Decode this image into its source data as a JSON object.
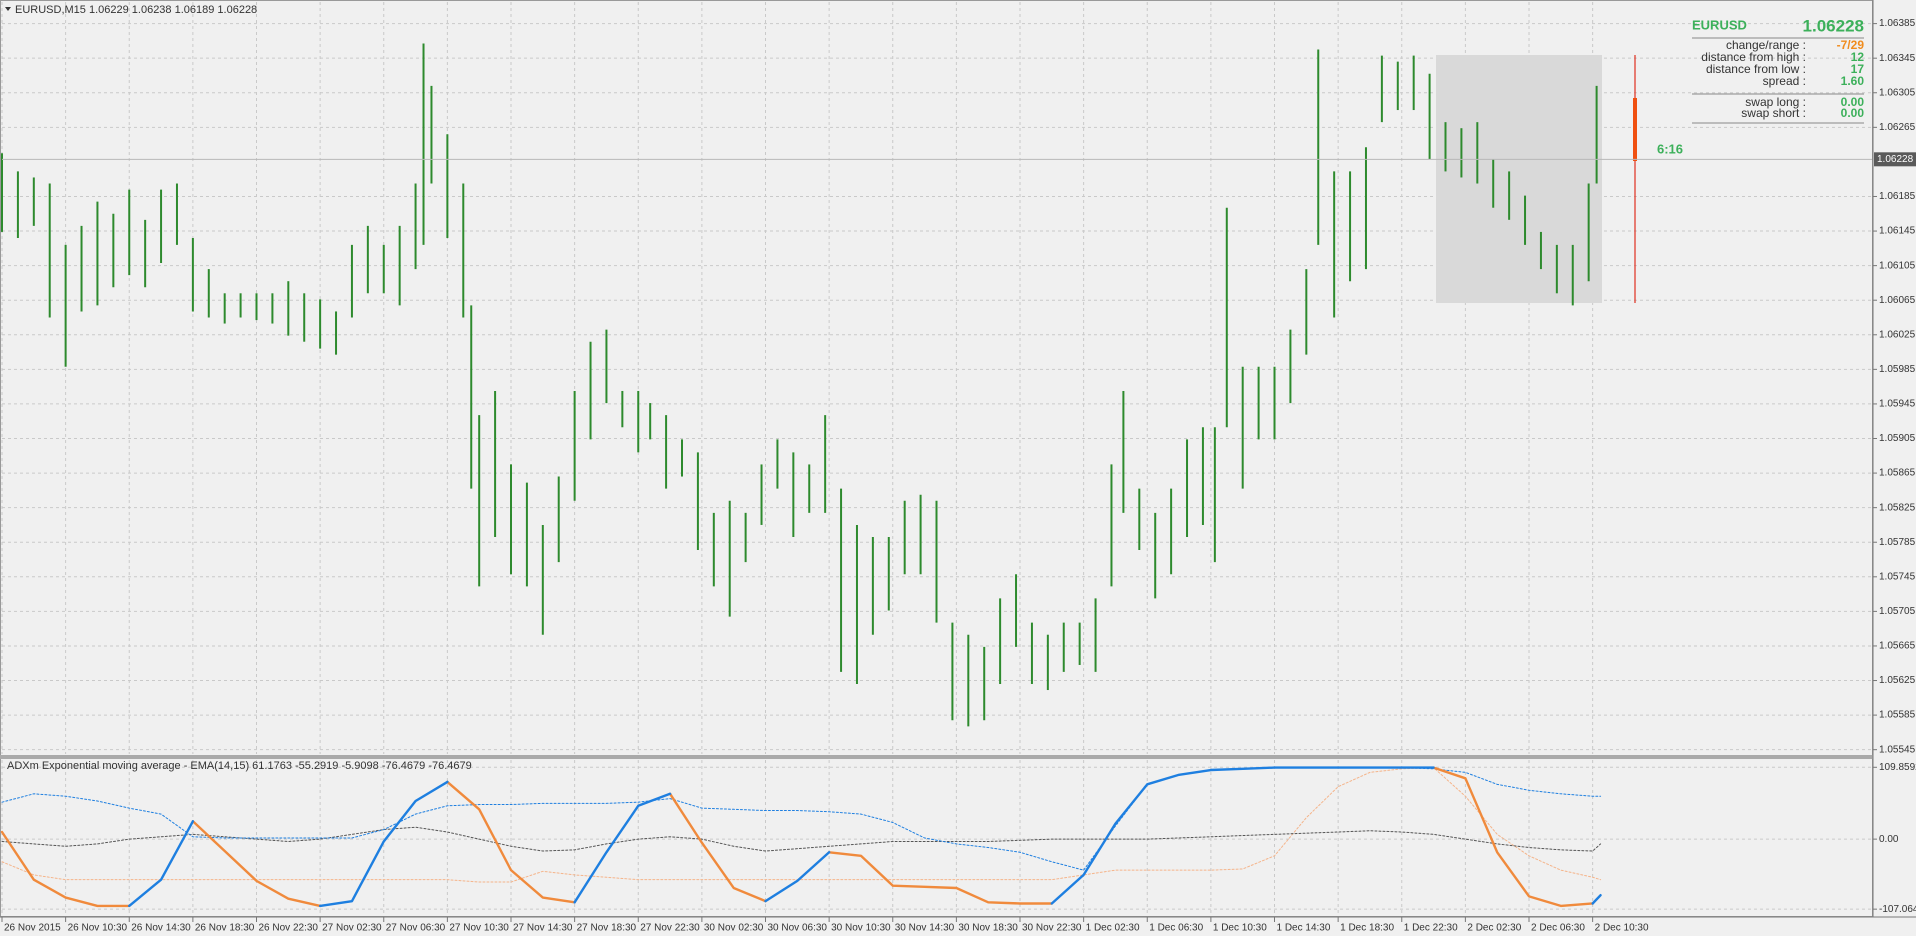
{
  "chart_data": [
    {
      "type": "ohlc",
      "header": "EURUSD,M15  1.06229 1.06238 1.06189 1.06228",
      "color": "#2d8a2d",
      "grid": true,
      "current_price": 1.06228,
      "countdown": "6:16",
      "info": {
        "symbol": "EURUSD",
        "rows": [
          {
            "label": "change/range :",
            "value": "-7/29"
          },
          {
            "label": "distance from high :",
            "value": "12"
          },
          {
            "label": "distance from low :",
            "value": "17"
          },
          {
            "label": "spread :",
            "value": "1.60"
          }
        ],
        "swaps": [
          {
            "label": "swap long :",
            "value": "0.00"
          },
          {
            "label": "swap short :",
            "value": "0.00"
          }
        ]
      },
      "xlim": [
        0,
        470
      ],
      "ylim": [
        1.0554,
        1.0641
      ],
      "yticks": [
        1.06385,
        1.06345,
        1.06305,
        1.06265,
        1.06185,
        1.06145,
        1.06105,
        1.06065,
        1.06025,
        1.05985,
        1.05945,
        1.05905,
        1.05865,
        1.05825,
        1.05785,
        1.05745,
        1.05705,
        1.05665,
        1.05625,
        1.05585,
        1.05545
      ],
      "x": [
        0,
        4,
        8,
        12,
        16,
        20,
        24,
        28,
        32,
        36,
        40,
        44,
        48,
        52,
        56,
        60,
        64,
        68,
        72,
        76,
        80,
        84,
        88,
        92,
        96,
        100,
        104,
        106,
        108,
        112,
        116,
        118,
        120,
        124,
        128,
        132,
        136,
        140,
        144,
        148,
        152,
        156,
        160,
        163,
        167,
        171,
        175,
        179,
        183,
        187,
        191,
        195,
        199,
        203,
        207,
        211,
        215,
        219,
        223,
        227,
        231,
        235,
        239,
        243,
        247,
        251,
        255,
        259,
        263,
        267,
        271,
        275,
        279,
        282,
        286,
        290,
        294,
        298,
        302,
        305,
        308,
        312,
        316,
        320,
        324,
        328,
        331,
        335,
        339,
        343,
        347,
        351,
        355,
        359,
        363,
        367,
        371,
        375,
        379,
        383,
        387,
        391,
        395,
        399,
        401
      ],
      "high": [
        1.06235,
        1.06214,
        1.06207,
        1.062,
        1.06129,
        1.06151,
        1.06179,
        1.06165,
        1.06193,
        1.06158,
        1.06193,
        1.062,
        1.06137,
        1.06101,
        1.06073,
        1.06073,
        1.06073,
        1.06073,
        1.06087,
        1.06073,
        1.06066,
        1.06052,
        1.06129,
        1.06151,
        1.06129,
        1.06151,
        1.062,
        1.06362,
        1.06313,
        1.06257,
        1.062,
        1.06059,
        1.05932,
        1.0596,
        1.05875,
        1.05854,
        1.05805,
        1.05861,
        1.0596,
        1.06017,
        1.06031,
        1.0596,
        1.0596,
        1.05946,
        1.05932,
        1.05904,
        1.05889,
        1.05819,
        1.05833,
        1.05819,
        1.05875,
        1.05904,
        1.05889,
        1.05875,
        1.05932,
        1.05847,
        1.05805,
        1.05791,
        1.05791,
        1.05833,
        1.0584,
        1.05833,
        1.05692,
        1.05678,
        1.05664,
        1.0572,
        1.05748,
        1.05692,
        1.05678,
        1.05692,
        1.05692,
        1.0572,
        1.05875,
        1.0596,
        1.05847,
        1.05819,
        1.05847,
        1.05904,
        1.05918,
        1.05918,
        1.06172,
        1.05988,
        1.05988,
        1.05988,
        1.06031,
        1.06101,
        1.06355,
        1.06214,
        1.06214,
        1.06242,
        1.06348,
        1.06341,
        1.06348,
        1.06327,
        1.06271,
        1.06264,
        1.06271,
        1.06228,
        1.06214,
        1.06186,
        1.06144,
        1.06129,
        1.06129,
        1.062,
        1.06313
      ],
      "low": [
        1.06144,
        1.06137,
        1.06151,
        1.06045,
        1.05988,
        1.06052,
        1.06059,
        1.0608,
        1.06094,
        1.0608,
        1.06108,
        1.06129,
        1.06052,
        1.06045,
        1.06038,
        1.06045,
        1.06042,
        1.06038,
        1.06024,
        1.06017,
        1.06009,
        1.06002,
        1.06045,
        1.06073,
        1.06073,
        1.06059,
        1.06101,
        1.06129,
        1.062,
        1.06137,
        1.06045,
        1.05847,
        1.05734,
        1.05791,
        1.05748,
        1.05734,
        1.05678,
        1.05762,
        1.05833,
        1.05904,
        1.05946,
        1.05918,
        1.05889,
        1.05904,
        1.05847,
        1.05861,
        1.05776,
        1.05734,
        1.05699,
        1.05762,
        1.05805,
        1.05847,
        1.05791,
        1.05819,
        1.05819,
        1.05635,
        1.05621,
        1.05678,
        1.05706,
        1.05748,
        1.05748,
        1.05692,
        1.05579,
        1.05572,
        1.05579,
        1.05621,
        1.05664,
        1.05621,
        1.05614,
        1.05635,
        1.05643,
        1.05635,
        1.05734,
        1.05819,
        1.05776,
        1.0572,
        1.05748,
        1.05791,
        1.05805,
        1.05762,
        1.05918,
        1.05847,
        1.05904,
        1.05904,
        1.05946,
        1.06002,
        1.06129,
        1.06045,
        1.06087,
        1.06101,
        1.06271,
        1.06285,
        1.06285,
        1.06228,
        1.06214,
        1.06207,
        1.062,
        1.06172,
        1.06158,
        1.06129,
        1.06101,
        1.06073,
        1.06059,
        1.06087,
        1.062
      ]
    },
    {
      "type": "line",
      "title": "ADXm Exponential moving average - EMA(14,15) 61.1763 -55.2919 -5.9098 -76.4679 -76.4679",
      "grid": true,
      "xlim": [
        0,
        470
      ],
      "ylim": [
        -116,
        121
      ],
      "yticks": [
        109.8592,
        {
          "value": 0,
          "label": "0.00"
        },
        -107.0647
      ],
      "xticks": [
        {
          "value": 0,
          "label": "26 Nov 2015"
        },
        {
          "value": 16,
          "label": "26 Nov 10:30"
        },
        {
          "value": 32,
          "label": "26 Nov 14:30"
        },
        {
          "value": 48,
          "label": "26 Nov 18:30"
        },
        {
          "value": 64,
          "label": "26 Nov 22:30"
        },
        {
          "value": 80,
          "label": "27 Nov 02:30"
        },
        {
          "value": 96,
          "label": "27 Nov 06:30"
        },
        {
          "value": 112,
          "label": "27 Nov 10:30"
        },
        {
          "value": 128,
          "label": "27 Nov 14:30"
        },
        {
          "value": 144,
          "label": "27 Nov 18:30"
        },
        {
          "value": 160,
          "label": "27 Nov 22:30"
        },
        {
          "value": 176,
          "label": "30 Nov 02:30"
        },
        {
          "value": 192,
          "label": "30 Nov 06:30"
        },
        {
          "value": 208,
          "label": "30 Nov 10:30"
        },
        {
          "value": 224,
          "label": "30 Nov 14:30"
        },
        {
          "value": 240,
          "label": "30 Nov 18:30"
        },
        {
          "value": 256,
          "label": "30 Nov 22:30"
        },
        {
          "value": 272,
          "label": "1 Dec 02:30"
        },
        {
          "value": 288,
          "label": "1 Dec 06:30"
        },
        {
          "value": 304,
          "label": "1 Dec 10:30"
        },
        {
          "value": 320,
          "label": "1 Dec 14:30"
        },
        {
          "value": 336,
          "label": "1 Dec 18:30"
        },
        {
          "value": 352,
          "label": "1 Dec 22:30"
        },
        {
          "value": 368,
          "label": "2 Dec 02:30"
        },
        {
          "value": 384,
          "label": "2 Dec 06:30"
        },
        {
          "value": 400,
          "label": "2 Dec 10:30"
        }
      ],
      "x": [
        0,
        8,
        16,
        24,
        32,
        40,
        48,
        56,
        64,
        72,
        80,
        88,
        96,
        104,
        112,
        120,
        128,
        136,
        144,
        152,
        160,
        168,
        176,
        184,
        192,
        200,
        208,
        216,
        224,
        232,
        240,
        248,
        256,
        264,
        272,
        280,
        288,
        296,
        304,
        312,
        320,
        328,
        336,
        344,
        352,
        360,
        368,
        376,
        384,
        392,
        400,
        402
      ],
      "series": [
        {
          "color": "#f5b48a",
          "style": "dotted",
          "values": [
            -34.6,
            -54.7,
            -62,
            -62,
            -62,
            -62,
            -62,
            -62,
            -62,
            -62,
            -62,
            -62,
            -62,
            -62,
            -62,
            -65.6,
            -65.6,
            -49.2,
            -54.7,
            -58.3,
            -62,
            -62,
            -62,
            -62,
            -62,
            -62,
            -62,
            -62,
            -62,
            -62,
            -62,
            -62,
            -62,
            -62,
            -54.7,
            -47.4,
            -47.4,
            -47.4,
            -47.4,
            -45.6,
            -25.5,
            32.8,
            80.2,
            102.1,
            107.5,
            109.4,
            65.6,
            7.3,
            -25.5,
            -47.4,
            -58.3,
            -62
          ]
        },
        {
          "color": "#555555",
          "style": "dotted",
          "values": [
            -3.6,
            -7.3,
            -10.9,
            -7.3,
            0,
            3.6,
            7.3,
            3.6,
            0,
            -3.6,
            0,
            7.3,
            14.6,
            18.2,
            10.9,
            0,
            -10.9,
            -18.2,
            -16.4,
            -7.3,
            0,
            3.6,
            0,
            -10.9,
            -18.2,
            -14.6,
            -10.9,
            -7.3,
            -3.6,
            -3.6,
            -3.6,
            -3.6,
            -1.8,
            0,
            0,
            0,
            0,
            1.8,
            3.6,
            5.5,
            7.3,
            9.1,
            10.9,
            12.8,
            10.9,
            7.3,
            0,
            -7.3,
            -12.8,
            -16.4,
            -18.2,
            -7.3
          ]
        },
        {
          "color": "#1e7fe0",
          "style": "dotted",
          "values": [
            56.5,
            69.3,
            65.6,
            58.3,
            47.4,
            38.3,
            3.6,
            1.8,
            1.8,
            1.8,
            1.8,
            1.8,
            14.6,
            38.3,
            51,
            52.9,
            52.9,
            54.7,
            54.7,
            54.7,
            56.5,
            62,
            47.4,
            45.6,
            43.7,
            43.7,
            41.9,
            38.3,
            25.5,
            1.8,
            -7.3,
            -12.8,
            -20.1,
            -34.6,
            -47.4,
            20.1,
            83.8,
            98.4,
            105.7,
            107.5,
            109.4,
            109.4,
            109.4,
            109.4,
            109.4,
            107.5,
            102.1,
            83.8,
            74.7,
            69.3,
            65.6,
            65.6
          ]
        },
        {
          "color": "#f08a3c",
          "style": "solid",
          "values": [
            10.9,
            -62,
            -89.3,
            -102.1,
            -102.1,
            null,
            27.3,
            -18.2,
            -63.8,
            -91.1,
            -102.1,
            null,
            null,
            null,
            87.5,
            45.6,
            -47.4,
            -89.3,
            -96.6,
            null,
            null,
            69.3,
            -5.5,
            -74.7,
            -94.8,
            null,
            -20.1,
            -25.5,
            -71.1,
            -72.9,
            -74.7,
            -96.6,
            -98.4,
            -98.4,
            null,
            null,
            null,
            null,
            null,
            null,
            null,
            null,
            null,
            null,
            null,
            109.4,
            93,
            -20.1,
            -87.5,
            -102.1,
            -98.4,
            null
          ]
        },
        {
          "color": "#1e7fe0",
          "style": "solid",
          "values": [
            null,
            null,
            null,
            null,
            -102.1,
            -62,
            27.3,
            null,
            null,
            null,
            -102.1,
            -94.8,
            -3.6,
            58.3,
            87.5,
            null,
            null,
            null,
            -96.6,
            -20.1,
            51,
            69.3,
            null,
            null,
            -94.8,
            -63.8,
            -20.1,
            null,
            null,
            null,
            null,
            null,
            null,
            -98.4,
            -54.7,
            23.7,
            83.8,
            98.4,
            105.7,
            107.5,
            109.4,
            109.4,
            109.4,
            109.4,
            109.4,
            109.4,
            null,
            null,
            null,
            null,
            -98.4,
            -85.7
          ]
        }
      ]
    }
  ]
}
